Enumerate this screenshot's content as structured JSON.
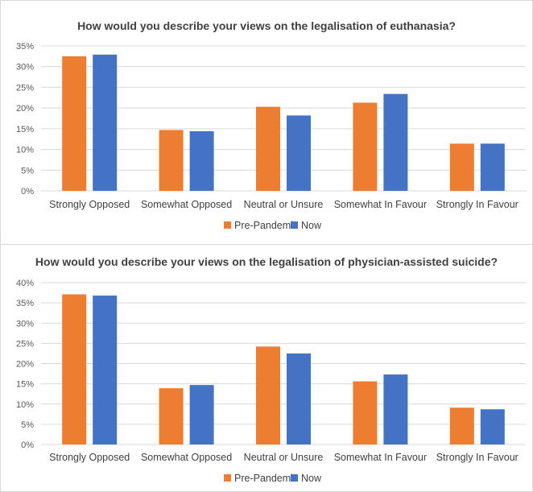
{
  "colors": {
    "pre_pandemic": "#ED7D31",
    "now": "#4472C4",
    "grid": "#D9D9D9"
  },
  "chart_data": [
    {
      "type": "bar",
      "title": "How would you describe your views on the legalisation of euthanasia?",
      "categories": [
        "Strongly Opposed",
        "Somewhat Opposed",
        "Neutral or Unsure",
        "Somewhat In Favour",
        "Strongly In Favour"
      ],
      "series": [
        {
          "name": "Pre-Pandemic",
          "values": [
            32.5,
            14.7,
            20.3,
            21.3,
            11.4
          ]
        },
        {
          "name": "Now",
          "values": [
            32.9,
            14.4,
            18.2,
            23.4,
            11.4
          ]
        }
      ],
      "ylim": [
        0,
        35
      ],
      "yticks": [
        "0%",
        "5%",
        "10%",
        "15%",
        "20%",
        "25%",
        "30%",
        "35%"
      ],
      "grid": true,
      "legend": "bottom"
    },
    {
      "type": "bar",
      "title": "How would you describe your views on the legalisation of physician-assisted suicide?",
      "categories": [
        "Strongly Opposed",
        "Somewhat Opposed",
        "Neutral or Unsure",
        "Somewhat In Favour",
        "Strongly In Favour"
      ],
      "series": [
        {
          "name": "Pre-Pandemic",
          "values": [
            37.1,
            13.9,
            24.2,
            15.6,
            9.1
          ]
        },
        {
          "name": "Now",
          "values": [
            36.8,
            14.7,
            22.5,
            17.3,
            8.7
          ]
        }
      ],
      "ylim": [
        0,
        40
      ],
      "yticks": [
        "0%",
        "5%",
        "10%",
        "15%",
        "20%",
        "25%",
        "30%",
        "35%",
        "40%"
      ],
      "grid": true,
      "legend": "bottom"
    }
  ]
}
